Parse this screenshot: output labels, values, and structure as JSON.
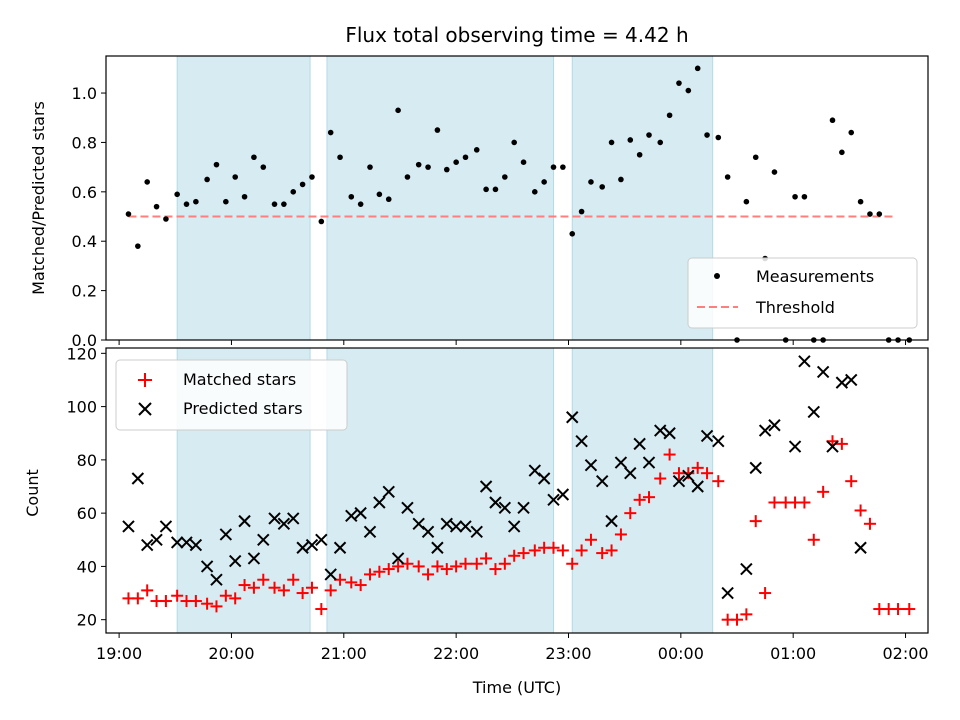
{
  "chart_data": [
    {
      "type": "scatter",
      "title": "Flux total observing time = 4.42 h",
      "xlabel": "",
      "ylabel": "Matched/Predicted stars",
      "xlim": [
        "18:53",
        "02:12"
      ],
      "ylim": [
        0,
        1.15
      ],
      "yticks": [
        "0.0",
        "0.2",
        "0.4",
        "0.6",
        "0.8",
        "1.0"
      ],
      "xticks": [],
      "grid": false,
      "legend": {
        "position": "lower right",
        "entries": [
          "Measurements",
          "Threshold"
        ]
      },
      "shaded_intervals": [
        [
          "19:31",
          "20:42"
        ],
        [
          "20:51",
          "22:52"
        ],
        [
          "23:02",
          "00:17"
        ]
      ],
      "threshold": {
        "name": "Threshold",
        "value": 0.5,
        "x_range": [
          "19:05",
          "01:55"
        ],
        "color": "#ff7f7f",
        "style": "dashed"
      },
      "series": [
        {
          "name": "Measurements",
          "color": "#000000",
          "points": [
            [
              "19:05",
              0.51
            ],
            [
              "19:10",
              0.38
            ],
            [
              "19:15",
              0.64
            ],
            [
              "19:20",
              0.54
            ],
            [
              "19:25",
              0.49
            ],
            [
              "19:31",
              0.59
            ],
            [
              "19:36",
              0.55
            ],
            [
              "19:41",
              0.56
            ],
            [
              "19:47",
              0.65
            ],
            [
              "19:52",
              0.71
            ],
            [
              "19:57",
              0.56
            ],
            [
              "20:02",
              0.66
            ],
            [
              "20:07",
              0.58
            ],
            [
              "20:12",
              0.74
            ],
            [
              "20:17",
              0.7
            ],
            [
              "20:23",
              0.55
            ],
            [
              "20:28",
              0.55
            ],
            [
              "20:33",
              0.6
            ],
            [
              "20:38",
              0.63
            ],
            [
              "20:43",
              0.66
            ],
            [
              "20:48",
              0.48
            ],
            [
              "20:53",
              0.84
            ],
            [
              "20:58",
              0.74
            ],
            [
              "21:04",
              0.58
            ],
            [
              "21:09",
              0.55
            ],
            [
              "21:14",
              0.7
            ],
            [
              "21:19",
              0.59
            ],
            [
              "21:24",
              0.57
            ],
            [
              "21:29",
              0.93
            ],
            [
              "21:34",
              0.66
            ],
            [
              "21:40",
              0.71
            ],
            [
              "21:45",
              0.7
            ],
            [
              "21:50",
              0.85
            ],
            [
              "21:55",
              0.69
            ],
            [
              "22:00",
              0.72
            ],
            [
              "22:05",
              0.74
            ],
            [
              "22:11",
              0.77
            ],
            [
              "22:16",
              0.61
            ],
            [
              "22:21",
              0.61
            ],
            [
              "22:26",
              0.66
            ],
            [
              "22:31",
              0.8
            ],
            [
              "22:36",
              0.72
            ],
            [
              "22:42",
              0.6
            ],
            [
              "22:47",
              0.64
            ],
            [
              "22:52",
              0.7
            ],
            [
              "22:57",
              0.7
            ],
            [
              "23:02",
              0.43
            ],
            [
              "23:07",
              0.52
            ],
            [
              "23:12",
              0.64
            ],
            [
              "23:18",
              0.62
            ],
            [
              "23:23",
              0.8
            ],
            [
              "23:28",
              0.65
            ],
            [
              "23:33",
              0.81
            ],
            [
              "23:38",
              0.75
            ],
            [
              "23:43",
              0.83
            ],
            [
              "23:49",
              0.8
            ],
            [
              "23:54",
              0.91
            ],
            [
              "23:59",
              1.04
            ],
            [
              "00:04",
              1.01
            ],
            [
              "00:09",
              1.1
            ],
            [
              "00:14",
              0.83
            ],
            [
              "00:20",
              0.82
            ],
            [
              "00:25",
              0.66
            ],
            [
              "00:30",
              0.0
            ],
            [
              "00:35",
              0.56
            ],
            [
              "00:40",
              0.74
            ],
            [
              "00:45",
              0.33
            ],
            [
              "00:50",
              0.68
            ],
            [
              "00:56",
              0.0
            ],
            [
              "01:01",
              0.58
            ],
            [
              "01:06",
              0.58
            ],
            [
              "01:11",
              0.0
            ],
            [
              "01:16",
              0.0
            ],
            [
              "01:21",
              0.89
            ],
            [
              "01:26",
              0.76
            ],
            [
              "01:31",
              0.84
            ],
            [
              "01:36",
              0.56
            ],
            [
              "01:41",
              0.51
            ],
            [
              "01:46",
              0.51
            ],
            [
              "01:51",
              0.0
            ],
            [
              "01:56",
              0.0
            ],
            [
              "02:02",
              0.0
            ]
          ]
        }
      ]
    },
    {
      "type": "scatter",
      "title": "",
      "xlabel": "Time (UTC)",
      "ylabel": "Count",
      "xlim": [
        "18:53",
        "02:12"
      ],
      "ylim": [
        15,
        122
      ],
      "yticks": [
        "20",
        "40",
        "60",
        "80",
        "100",
        "120"
      ],
      "xticks": [
        "19:00",
        "20:00",
        "21:00",
        "22:00",
        "23:00",
        "00:00",
        "01:00",
        "02:00"
      ],
      "grid": false,
      "legend": {
        "position": "upper left",
        "entries": [
          "Matched stars",
          "Predicted stars"
        ]
      },
      "shaded_intervals": [
        [
          "19:31",
          "20:42"
        ],
        [
          "20:51",
          "22:52"
        ],
        [
          "23:02",
          "00:17"
        ]
      ],
      "series": [
        {
          "name": "Matched stars",
          "color": "#ff0000",
          "marker": "plus",
          "points": [
            [
              "19:05",
              28
            ],
            [
              "19:10",
              28
            ],
            [
              "19:15",
              31
            ],
            [
              "19:20",
              27
            ],
            [
              "19:25",
              27
            ],
            [
              "19:31",
              29
            ],
            [
              "19:36",
              27
            ],
            [
              "19:41",
              27
            ],
            [
              "19:47",
              26
            ],
            [
              "19:52",
              25
            ],
            [
              "19:57",
              29
            ],
            [
              "20:02",
              28
            ],
            [
              "20:07",
              33
            ],
            [
              "20:12",
              32
            ],
            [
              "20:17",
              35
            ],
            [
              "20:23",
              32
            ],
            [
              "20:28",
              31
            ],
            [
              "20:33",
              35
            ],
            [
              "20:38",
              30
            ],
            [
              "20:43",
              32
            ],
            [
              "20:48",
              24
            ],
            [
              "20:53",
              31
            ],
            [
              "20:58",
              35
            ],
            [
              "21:04",
              34
            ],
            [
              "21:09",
              33
            ],
            [
              "21:14",
              37
            ],
            [
              "21:19",
              38
            ],
            [
              "21:24",
              39
            ],
            [
              "21:29",
              40
            ],
            [
              "21:34",
              41
            ],
            [
              "21:40",
              40
            ],
            [
              "21:45",
              37
            ],
            [
              "21:50",
              40
            ],
            [
              "21:55",
              39
            ],
            [
              "22:00",
              40
            ],
            [
              "22:05",
              41
            ],
            [
              "22:11",
              41
            ],
            [
              "22:16",
              43
            ],
            [
              "22:21",
              39
            ],
            [
              "22:26",
              41
            ],
            [
              "22:31",
              44
            ],
            [
              "22:36",
              45
            ],
            [
              "22:42",
              46
            ],
            [
              "22:47",
              47
            ],
            [
              "22:52",
              47
            ],
            [
              "22:57",
              46
            ],
            [
              "23:02",
              41
            ],
            [
              "23:07",
              46
            ],
            [
              "23:12",
              50
            ],
            [
              "23:18",
              45
            ],
            [
              "23:23",
              46
            ],
            [
              "23:28",
              52
            ],
            [
              "23:33",
              60
            ],
            [
              "23:38",
              65
            ],
            [
              "23:43",
              66
            ],
            [
              "23:49",
              73
            ],
            [
              "23:54",
              82
            ],
            [
              "23:59",
              75
            ],
            [
              "00:04",
              75
            ],
            [
              "00:09",
              77
            ],
            [
              "00:14",
              75
            ],
            [
              "00:20",
              72
            ],
            [
              "00:25",
              20
            ],
            [
              "00:30",
              20
            ],
            [
              "00:35",
              22
            ],
            [
              "00:40",
              57
            ],
            [
              "00:45",
              30
            ],
            [
              "00:50",
              64
            ],
            [
              "00:56",
              64
            ],
            [
              "01:01",
              64
            ],
            [
              "01:06",
              64
            ],
            [
              "01:11",
              50
            ],
            [
              "01:16",
              68
            ],
            [
              "01:21",
              87
            ],
            [
              "01:26",
              86
            ],
            [
              "01:31",
              72
            ],
            [
              "01:36",
              61
            ],
            [
              "01:41",
              56
            ],
            [
              "01:46",
              24
            ],
            [
              "01:51",
              24
            ],
            [
              "01:56",
              24
            ],
            [
              "02:02",
              24
            ]
          ]
        },
        {
          "name": "Predicted stars",
          "color": "#000000",
          "marker": "x",
          "points": [
            [
              "19:05",
              55
            ],
            [
              "19:10",
              73
            ],
            [
              "19:15",
              48
            ],
            [
              "19:20",
              50
            ],
            [
              "19:25",
              55
            ],
            [
              "19:31",
              49
            ],
            [
              "19:36",
              49
            ],
            [
              "19:41",
              48
            ],
            [
              "19:47",
              40
            ],
            [
              "19:52",
              35
            ],
            [
              "19:57",
              52
            ],
            [
              "20:02",
              42
            ],
            [
              "20:07",
              57
            ],
            [
              "20:12",
              43
            ],
            [
              "20:17",
              50
            ],
            [
              "20:23",
              58
            ],
            [
              "20:28",
              56
            ],
            [
              "20:33",
              58
            ],
            [
              "20:38",
              47
            ],
            [
              "20:43",
              48
            ],
            [
              "20:48",
              50
            ],
            [
              "20:53",
              37
            ],
            [
              "20:58",
              47
            ],
            [
              "21:04",
              59
            ],
            [
              "21:09",
              60
            ],
            [
              "21:14",
              53
            ],
            [
              "21:19",
              64
            ],
            [
              "21:24",
              68
            ],
            [
              "21:29",
              43
            ],
            [
              "21:34",
              62
            ],
            [
              "21:40",
              56
            ],
            [
              "21:45",
              53
            ],
            [
              "21:50",
              47
            ],
            [
              "21:55",
              56
            ],
            [
              "22:00",
              55
            ],
            [
              "22:05",
              55
            ],
            [
              "22:11",
              53
            ],
            [
              "22:16",
              70
            ],
            [
              "22:21",
              64
            ],
            [
              "22:26",
              62
            ],
            [
              "22:31",
              55
            ],
            [
              "22:36",
              62
            ],
            [
              "22:42",
              76
            ],
            [
              "22:47",
              73
            ],
            [
              "22:52",
              65
            ],
            [
              "22:57",
              67
            ],
            [
              "23:02",
              96
            ],
            [
              "23:07",
              87
            ],
            [
              "23:12",
              78
            ],
            [
              "23:18",
              72
            ],
            [
              "23:23",
              57
            ],
            [
              "23:28",
              79
            ],
            [
              "23:33",
              75
            ],
            [
              "23:38",
              86
            ],
            [
              "23:43",
              79
            ],
            [
              "23:49",
              91
            ],
            [
              "23:54",
              90
            ],
            [
              "23:59",
              72
            ],
            [
              "00:04",
              74
            ],
            [
              "00:09",
              70
            ],
            [
              "00:14",
              89
            ],
            [
              "00:20",
              87
            ],
            [
              "00:25",
              30
            ],
            [
              "00:35",
              39
            ],
            [
              "00:40",
              77
            ],
            [
              "00:45",
              91
            ],
            [
              "00:50",
              93
            ],
            [
              "01:01",
              85
            ],
            [
              "01:06",
              117
            ],
            [
              "01:11",
              98
            ],
            [
              "01:16",
              113
            ],
            [
              "01:21",
              85
            ],
            [
              "01:26",
              109
            ],
            [
              "01:31",
              110
            ],
            [
              "01:36",
              47
            ]
          ]
        }
      ]
    }
  ]
}
